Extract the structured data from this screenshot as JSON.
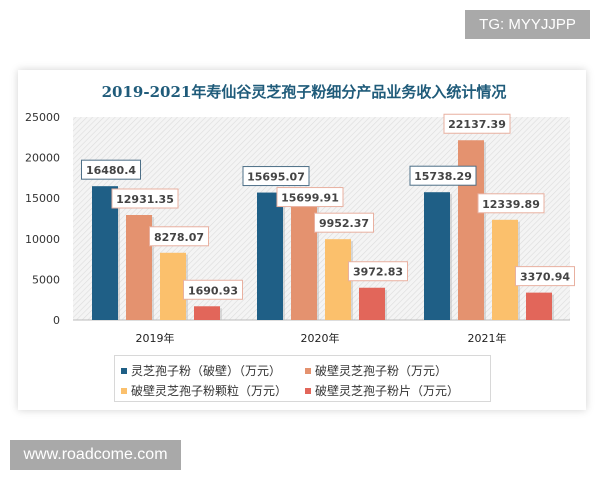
{
  "watermarks": {
    "top": "TG: MYYJJPP",
    "bottom": "www.roadcome.com"
  },
  "chart_data": {
    "type": "bar",
    "title": "2019-2021年寿仙谷灵芝孢子粉细分产品业务收入统计情况",
    "categories": [
      "2019年",
      "2020年",
      "2021年"
    ],
    "ylim": [
      0,
      25000
    ],
    "yticks": [
      "0",
      "5000",
      "10000",
      "15000",
      "20000",
      "25000"
    ],
    "grid": false,
    "legend_position": "bottom",
    "series": [
      {
        "name": "灵芝孢子粉（破壁）（万元）",
        "color": "#1f5f86",
        "values": [
          16480.4,
          15695.07,
          15738.29
        ],
        "labels": [
          "16480.4",
          "15695.07",
          "15738.29"
        ]
      },
      {
        "name": "破壁灵芝孢子粉（万元）",
        "color": "#e4926f",
        "values": [
          12931.35,
          15699.91,
          22137.39
        ],
        "labels": [
          "12931.35",
          "15699.91",
          "22137.39"
        ]
      },
      {
        "name": "破壁灵芝孢子粉颗粒（万元）",
        "color": "#fbc06c",
        "values": [
          8278.07,
          9952.37,
          12339.89
        ],
        "labels": [
          "8278.07",
          "9952.37",
          "12339.89"
        ]
      },
      {
        "name": "破壁灵芝孢子粉片（万元）",
        "color": "#e2665a",
        "values": [
          1690.93,
          3972.83,
          3370.94
        ],
        "labels": [
          "1690.93",
          "3972.83",
          "3370.94"
        ]
      }
    ]
  }
}
